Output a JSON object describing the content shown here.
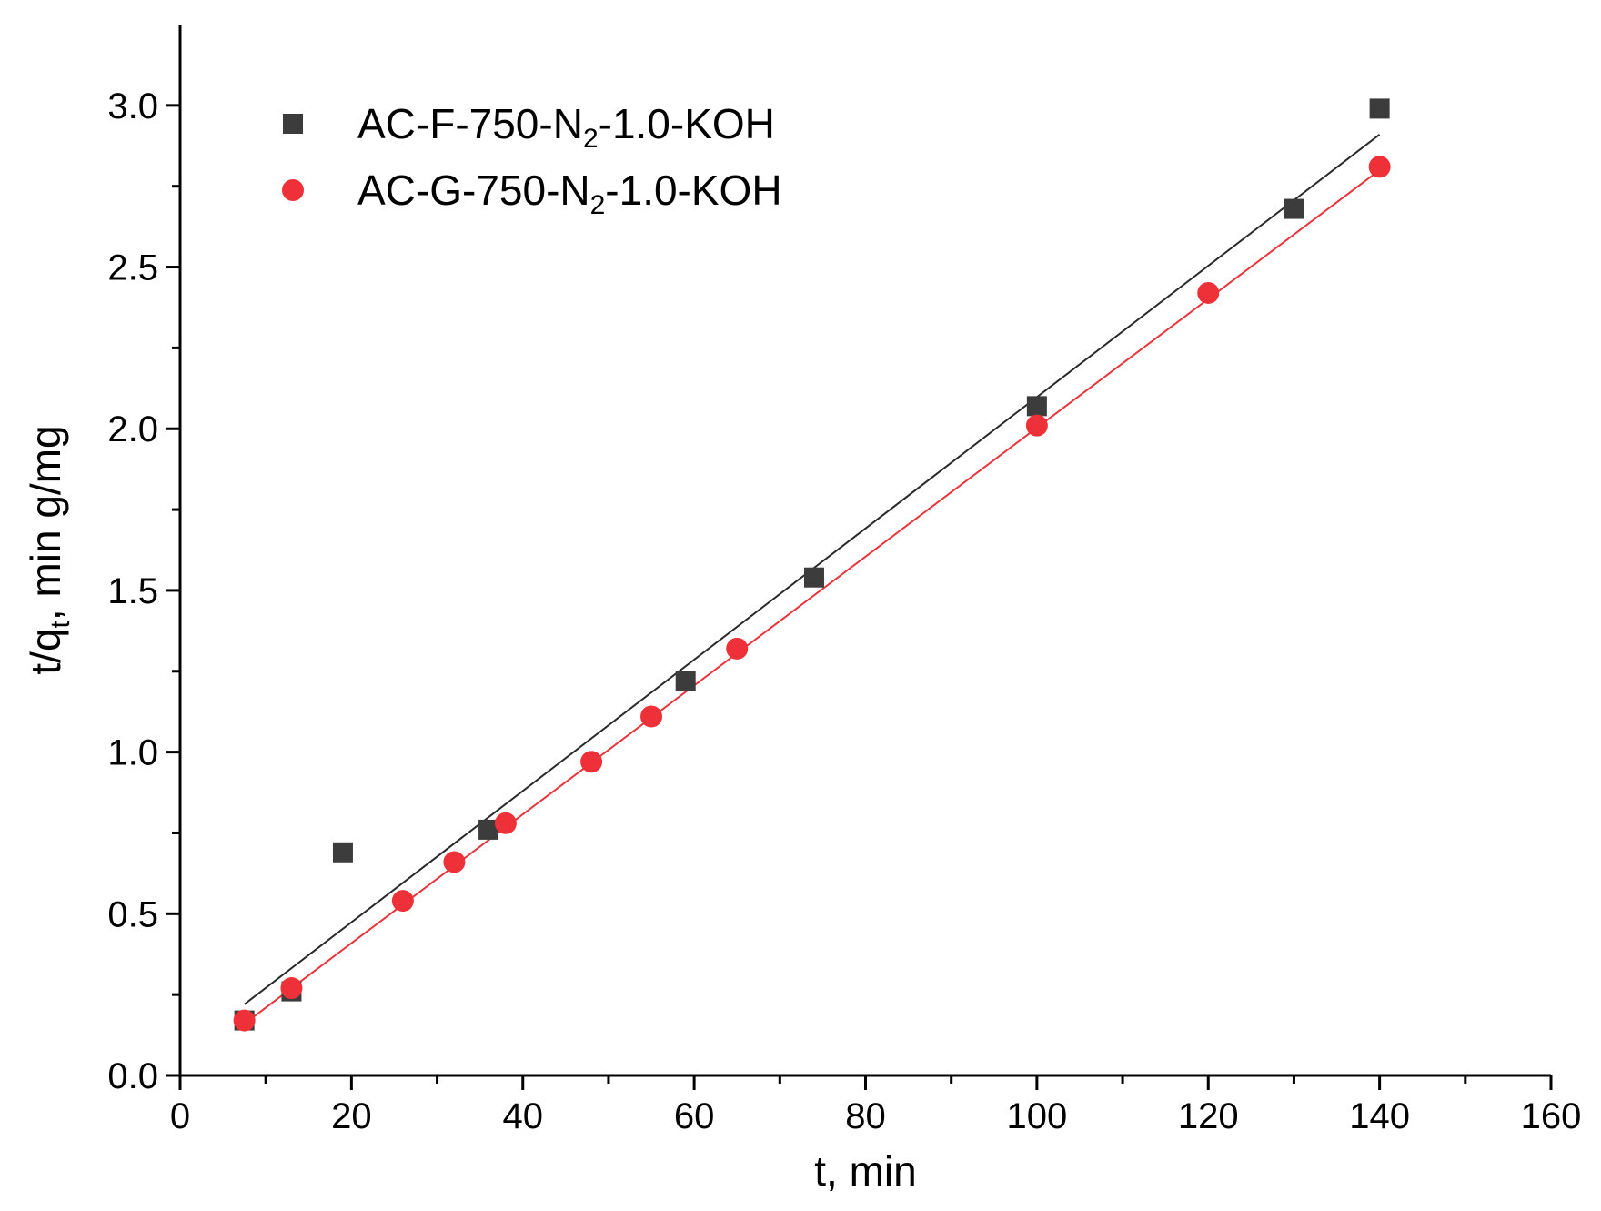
{
  "chart_data": {
    "type": "scatter",
    "xlabel": "t, min",
    "ylabel": {
      "main": "t/q",
      "sub": "t",
      "rest": ", min g/mg"
    },
    "xlim": [
      0,
      160
    ],
    "ylim": [
      0,
      3.25
    ],
    "x_ticks": [
      0,
      20,
      40,
      60,
      80,
      100,
      120,
      140,
      160
    ],
    "y_ticks": [
      0.0,
      0.5,
      1.0,
      1.5,
      2.0,
      2.5,
      3.0
    ],
    "x_tick_labels": [
      "0",
      "20",
      "40",
      "60",
      "80",
      "100",
      "120",
      "140",
      "160"
    ],
    "y_tick_labels": [
      "0.0",
      "0.5",
      "1.0",
      "1.5",
      "2.0",
      "2.5",
      "3.0"
    ],
    "grid": false,
    "legend_position": "top-left",
    "series": [
      {
        "name": {
          "pre": "AC-F-750-N",
          "sub": "2",
          "post": "-1.0-KOH"
        },
        "marker": "square",
        "color": "#3c3c3c",
        "line_color": "#2a2a2a",
        "x": [
          7.5,
          13,
          19,
          36,
          59,
          74,
          100,
          130,
          140
        ],
        "y": [
          0.17,
          0.26,
          0.69,
          0.76,
          1.22,
          1.54,
          2.07,
          2.68,
          2.99
        ],
        "fit": {
          "x": [
            7.5,
            140
          ],
          "y": [
            0.22,
            2.91
          ]
        }
      },
      {
        "name": {
          "pre": "AC-G-750-N",
          "sub": "2",
          "post": "-1.0-KOH"
        },
        "marker": "circle",
        "color": "#ee3138",
        "line_color": "#e8343b",
        "x": [
          7.5,
          13,
          26,
          32,
          38,
          48,
          55,
          65,
          100,
          120,
          140
        ],
        "y": [
          0.17,
          0.27,
          0.54,
          0.66,
          0.78,
          0.97,
          1.11,
          1.32,
          2.01,
          2.42,
          2.81
        ],
        "fit": {
          "x": [
            7.5,
            140
          ],
          "y": [
            0.16,
            2.8
          ]
        }
      }
    ]
  }
}
